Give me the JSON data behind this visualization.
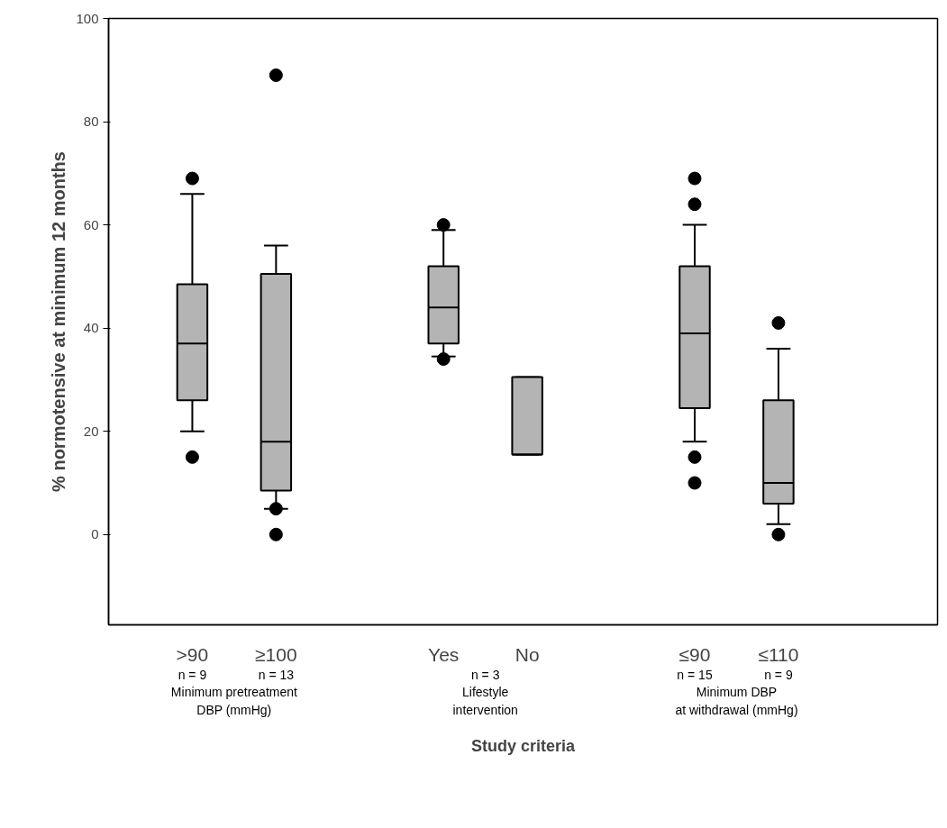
{
  "chart_data": {
    "type": "box",
    "xlabel": "Study criteria",
    "ylabel": "% normotensive at minimum 12 months",
    "categories": [
      ">90",
      "≥100",
      "Yes",
      "No",
      "≤90",
      "≤110"
    ],
    "series": [
      {
        "color": "#b4b4b4",
        "boxes": [
          {
            "low": 20,
            "q1": 26,
            "median": 37,
            "q3": 48.5,
            "high": 66,
            "outliers": [
              69,
              15
            ]
          },
          {
            "low": 5,
            "q1": 8.5,
            "median": 18,
            "q3": 50.5,
            "high": 56,
            "outliers": [
              89,
              5,
              0
            ]
          },
          {
            "low": 34.5,
            "q1": 37,
            "median": 44,
            "q3": 52,
            "high": 59,
            "outliers": [
              60,
              34
            ]
          },
          {
            "low": 15.5,
            "q1": 15.5,
            "median": 15.5,
            "q3": 30.5,
            "high": 30.5
          },
          {
            "low": 18,
            "q1": 24.5,
            "median": 39,
            "q3": 52,
            "high": 60,
            "outliers": [
              69,
              64,
              15,
              10
            ]
          },
          {
            "low": 2,
            "q1": 6,
            "median": 10,
            "q3": 26,
            "high": 36,
            "outliers": [
              41,
              0
            ]
          }
        ]
      }
    ],
    "ylim": [
      -17.5,
      100
    ],
    "yticks": [
      0,
      20,
      40,
      60,
      80,
      100
    ],
    "grid": false,
    "annotations": [
      "n = 9",
      "n = 13",
      "n = 3",
      "n = 15",
      "n = 9",
      "Minimum pretreatment\nDBP (mmHg)",
      "Lifestyle\nintervention",
      "Minimum DBP\nat withdrawal (mmHg)"
    ]
  }
}
